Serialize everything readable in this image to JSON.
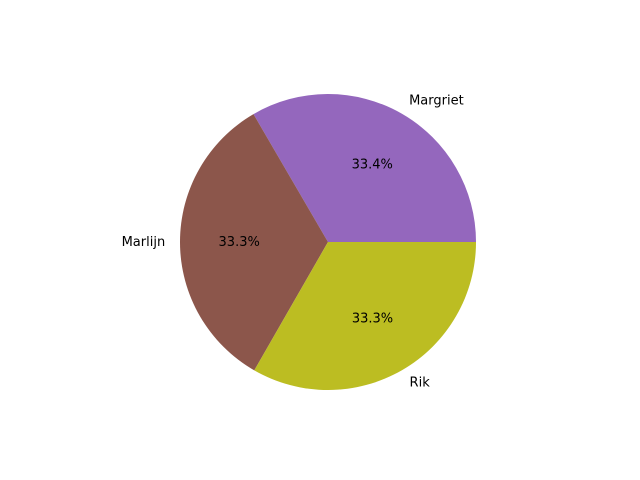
{
  "chart_data": {
    "type": "pie",
    "title": "",
    "start_angle_deg": 0,
    "direction": "counterclockwise",
    "slices": [
      {
        "label": "Margriet",
        "value": 33.4,
        "pct_label": "33.4%",
        "color": "#9467bd"
      },
      {
        "label": "Marlijn",
        "value": 33.3,
        "pct_label": "33.3%",
        "color": "#8c564b"
      },
      {
        "label": "Rik",
        "value": 33.3,
        "pct_label": "33.3%",
        "color": "#bcbd22"
      }
    ]
  }
}
